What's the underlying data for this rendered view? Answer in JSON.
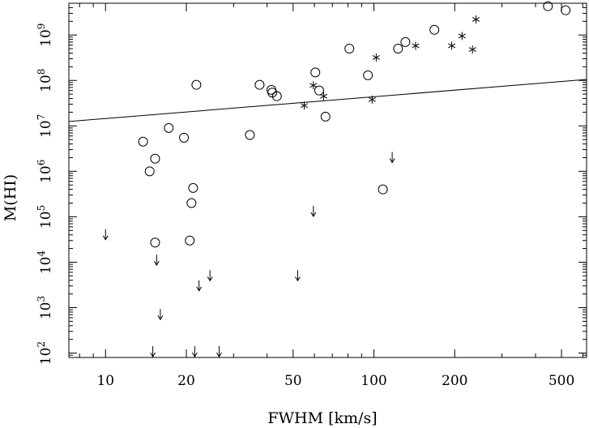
{
  "chart_data": {
    "type": "scatter",
    "xlabel": "FWHM [km/s]",
    "ylabel": "M(HI)",
    "x_scale": "log",
    "y_scale": "log",
    "xlim": [
      7.3,
      620
    ],
    "ylim": [
      80,
      5000000000
    ],
    "grid": false,
    "x_ticks": [
      {
        "value": 10,
        "label": "10"
      },
      {
        "value": 20,
        "label": "20"
      },
      {
        "value": 50,
        "label": "50"
      },
      {
        "value": 100,
        "label": "100"
      },
      {
        "value": 200,
        "label": "200"
      },
      {
        "value": 500,
        "label": "500"
      }
    ],
    "y_ticks": [
      {
        "value": 100,
        "base": "10",
        "exp": "2"
      },
      {
        "value": 1000,
        "base": "10",
        "exp": "3"
      },
      {
        "value": 10000,
        "base": "10",
        "exp": "4"
      },
      {
        "value": 100000,
        "base": "10",
        "exp": "5"
      },
      {
        "value": 1000000,
        "base": "10",
        "exp": "6"
      },
      {
        "value": 10000000,
        "base": "10",
        "exp": "7"
      },
      {
        "value": 100000000,
        "base": "10",
        "exp": "8"
      },
      {
        "value": 1000000000,
        "base": "10",
        "exp": "9"
      }
    ],
    "circles": [
      {
        "x": 13.8,
        "y": 4500000
      },
      {
        "x": 14.6,
        "y": 1000000
      },
      {
        "x": 15.3,
        "y": 1900000
      },
      {
        "x": 15.3,
        "y": 27000
      },
      {
        "x": 17.2,
        "y": 9000000
      },
      {
        "x": 19.6,
        "y": 5500000
      },
      {
        "x": 20.6,
        "y": 30000
      },
      {
        "x": 20.9,
        "y": 200000
      },
      {
        "x": 21.2,
        "y": 430000
      },
      {
        "x": 21.8,
        "y": 80000000
      },
      {
        "x": 34.5,
        "y": 6300000
      },
      {
        "x": 37.5,
        "y": 80000000
      },
      {
        "x": 41.5,
        "y": 62000000
      },
      {
        "x": 41.8,
        "y": 54000000
      },
      {
        "x": 43.5,
        "y": 45000000
      },
      {
        "x": 60.5,
        "y": 150000000
      },
      {
        "x": 62.5,
        "y": 60000000
      },
      {
        "x": 66.0,
        "y": 16000000
      },
      {
        "x": 81.0,
        "y": 500000000
      },
      {
        "x": 95.0,
        "y": 130000000
      },
      {
        "x": 108.0,
        "y": 400000
      },
      {
        "x": 123.0,
        "y": 500000000
      },
      {
        "x": 131.0,
        "y": 700000000
      },
      {
        "x": 168.0,
        "y": 1300000000
      },
      {
        "x": 445.0,
        "y": 4300000000
      },
      {
        "x": 518.0,
        "y": 3500000000
      }
    ],
    "stars": [
      {
        "x": 55.0,
        "y": 28000000
      },
      {
        "x": 59.5,
        "y": 78000000
      },
      {
        "x": 65.0,
        "y": 45000000
      },
      {
        "x": 98.5,
        "y": 38000000
      },
      {
        "x": 102.0,
        "y": 320000000
      },
      {
        "x": 143.0,
        "y": 580000000
      },
      {
        "x": 195.0,
        "y": 580000000
      },
      {
        "x": 213.0,
        "y": 950000000
      },
      {
        "x": 233.0,
        "y": 480000000
      },
      {
        "x": 240.0,
        "y": 2200000000
      }
    ],
    "upper_limits": [
      {
        "x": 10.0,
        "y": 40000
      },
      {
        "x": 15.0,
        "y": 100
      },
      {
        "x": 15.5,
        "y": 11000
      },
      {
        "x": 16.0,
        "y": 700
      },
      {
        "x": 21.5,
        "y": 100
      },
      {
        "x": 22.3,
        "y": 3000
      },
      {
        "x": 24.5,
        "y": 5000
      },
      {
        "x": 26.5,
        "y": 100
      },
      {
        "x": 52.0,
        "y": 5000
      },
      {
        "x": 59.5,
        "y": 130000
      },
      {
        "x": 117.0,
        "y": 2000000
      }
    ],
    "fit_line": {
      "x": [
        7.3,
        620
      ],
      "y": [
        12500000,
        105000000
      ]
    }
  }
}
